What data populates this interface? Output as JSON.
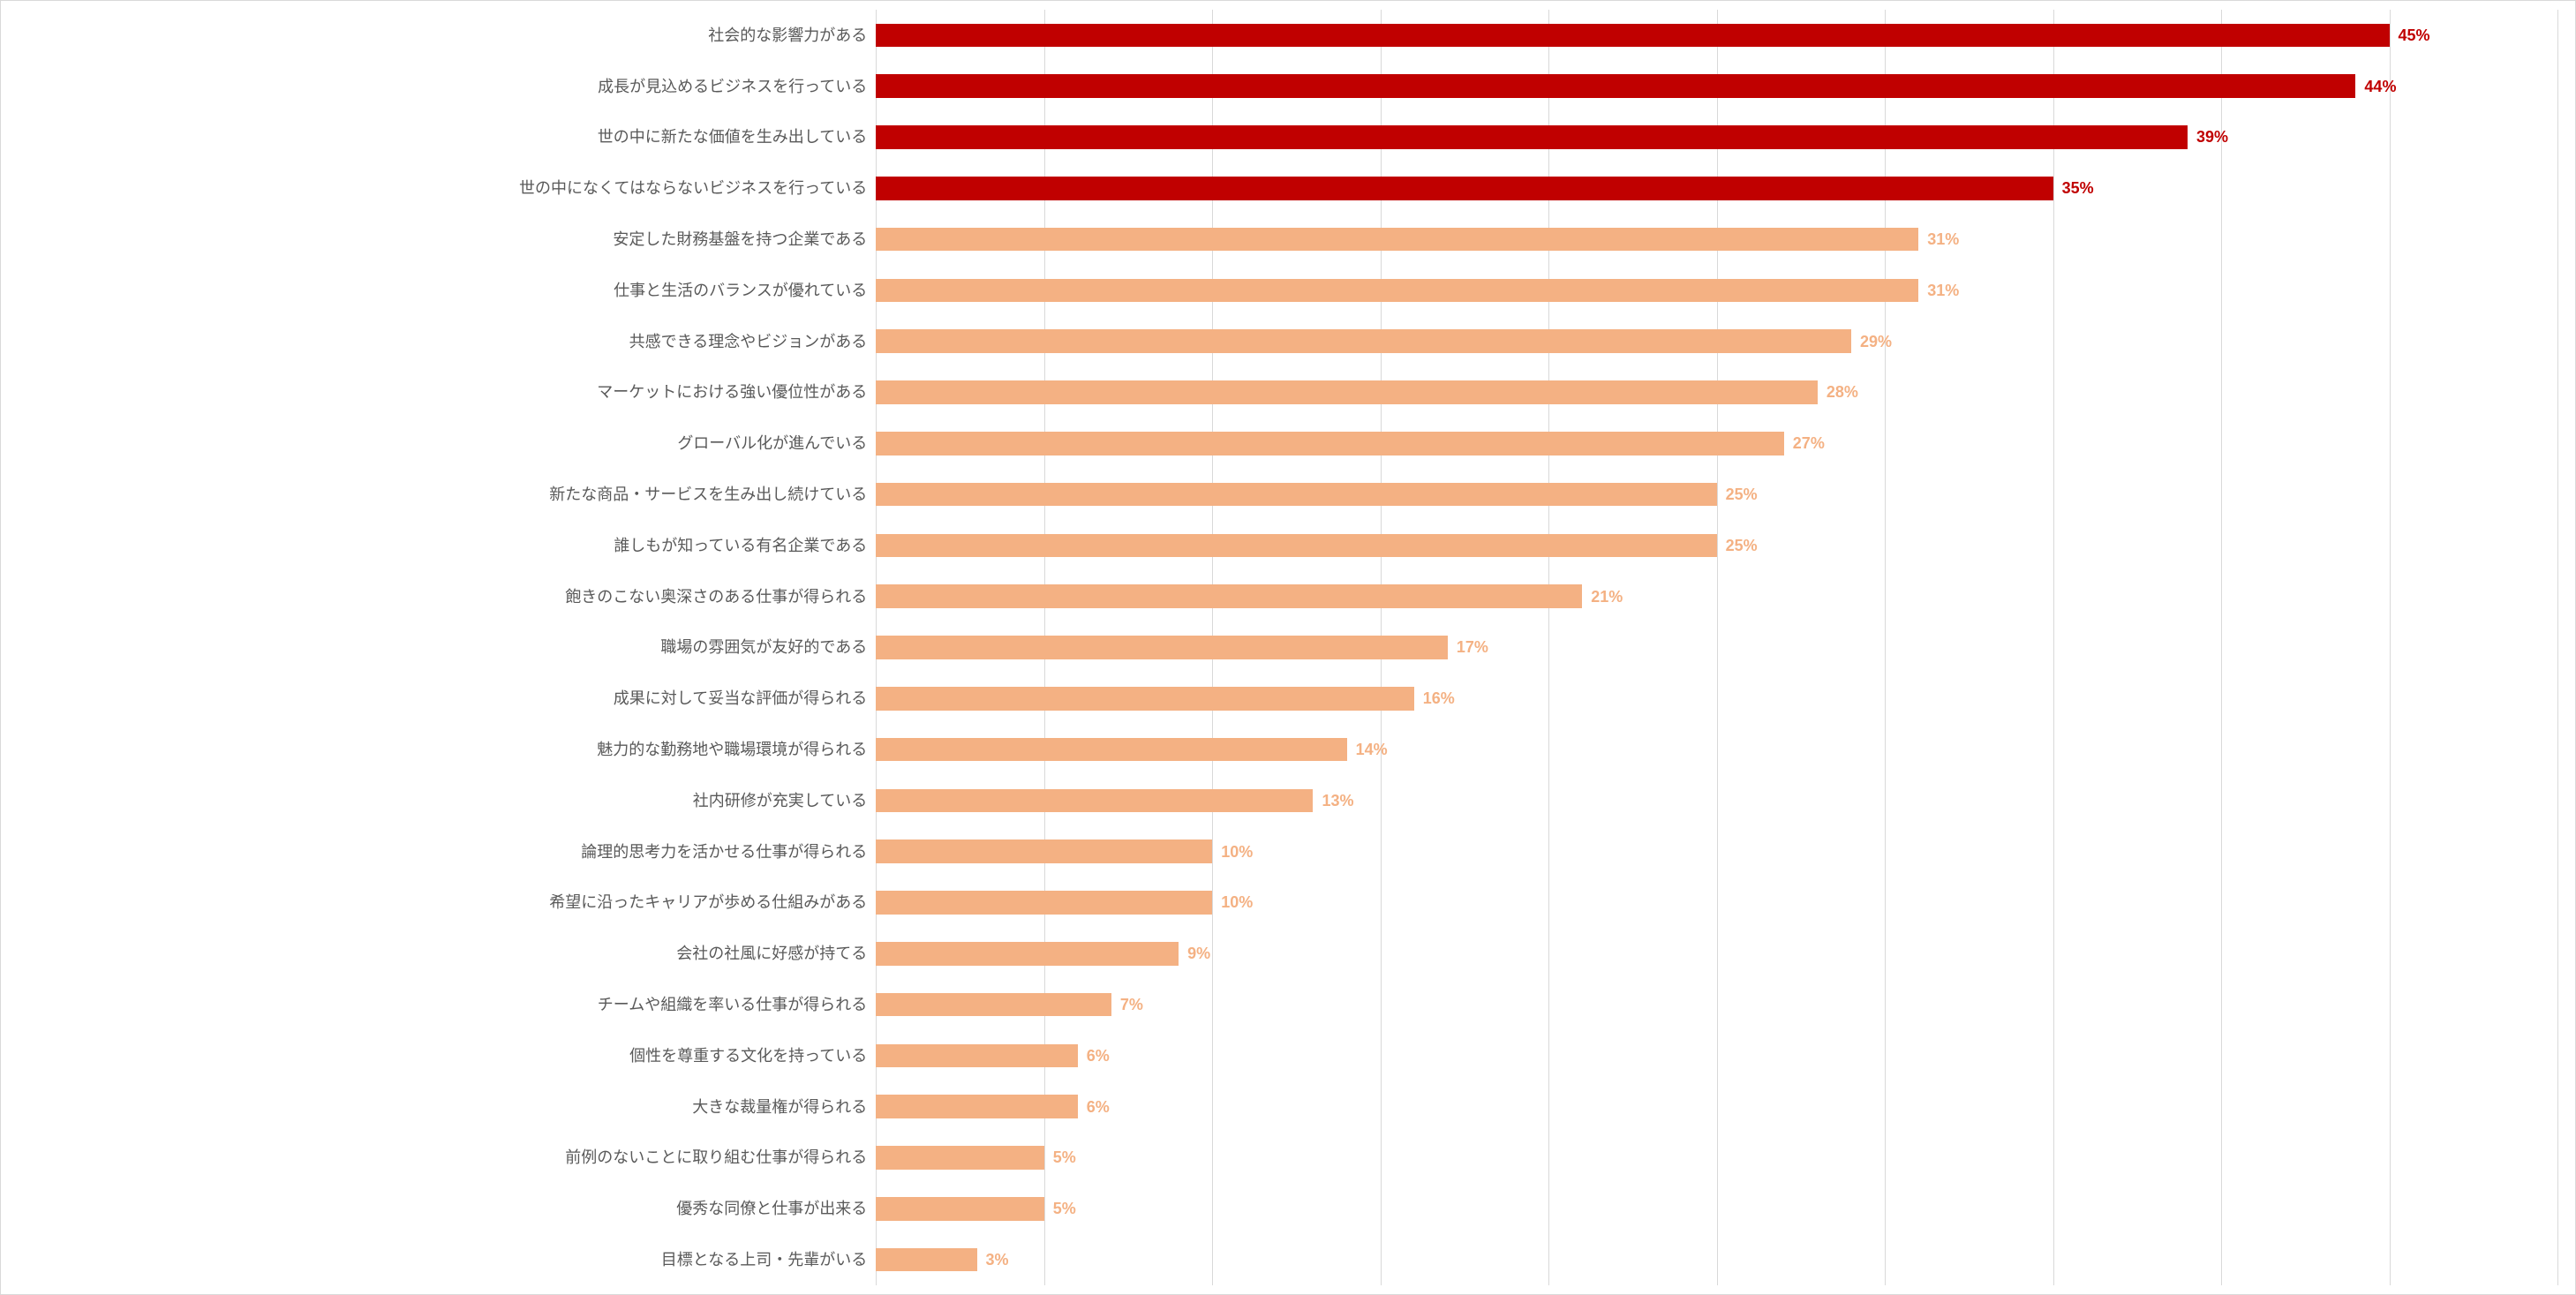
{
  "chart": {
    "type": "bar-horizontal",
    "x_max": 50,
    "xtick_step": 5,
    "background_color": "#ffffff",
    "border_color": "#d9d9d9",
    "grid_color": "#d9d9d9",
    "label_color": "#595959",
    "label_fontsize": 18,
    "value_fontsize": 18,
    "value_fontweight": 700,
    "bar_width_ratio": 0.46,
    "colors": {
      "highlight_bar": "#c00000",
      "highlight_text": "#c00000",
      "normal_bar": "#f4b183",
      "normal_text": "#f4b183"
    },
    "items": [
      {
        "label": "社会的な影響力がある",
        "value": 45,
        "display": "45%",
        "highlight": true
      },
      {
        "label": "成長が見込めるビジネスを行っている",
        "value": 44,
        "display": "44%",
        "highlight": true
      },
      {
        "label": "世の中に新たな価値を生み出している",
        "value": 39,
        "display": "39%",
        "highlight": true
      },
      {
        "label": "世の中になくてはならないビジネスを行っている",
        "value": 35,
        "display": "35%",
        "highlight": true
      },
      {
        "label": "安定した財務基盤を持つ企業である",
        "value": 31,
        "display": "31%",
        "highlight": false
      },
      {
        "label": "仕事と生活のバランスが優れている",
        "value": 31,
        "display": "31%",
        "highlight": false
      },
      {
        "label": "共感できる理念やビジョンがある",
        "value": 29,
        "display": "29%",
        "highlight": false
      },
      {
        "label": "マーケットにおける強い優位性がある",
        "value": 28,
        "display": "28%",
        "highlight": false
      },
      {
        "label": "グローバル化が進んでいる",
        "value": 27,
        "display": "27%",
        "highlight": false
      },
      {
        "label": "新たな商品・サービスを生み出し続けている",
        "value": 25,
        "display": "25%",
        "highlight": false
      },
      {
        "label": "誰しもが知っている有名企業である",
        "value": 25,
        "display": "25%",
        "highlight": false
      },
      {
        "label": "飽きのこない奥深さのある仕事が得られる",
        "value": 21,
        "display": "21%",
        "highlight": false
      },
      {
        "label": "職場の雰囲気が友好的である",
        "value": 17,
        "display": "17%",
        "highlight": false
      },
      {
        "label": "成果に対して妥当な評価が得られる",
        "value": 16,
        "display": "16%",
        "highlight": false
      },
      {
        "label": "魅力的な勤務地や職場環境が得られる",
        "value": 14,
        "display": "14%",
        "highlight": false
      },
      {
        "label": "社内研修が充実している",
        "value": 13,
        "display": "13%",
        "highlight": false
      },
      {
        "label": "論理的思考力を活かせる仕事が得られる",
        "value": 10,
        "display": "10%",
        "highlight": false
      },
      {
        "label": "希望に沿ったキャリアが歩める仕組みがある",
        "value": 10,
        "display": "10%",
        "highlight": false
      },
      {
        "label": "会社の社風に好感が持てる",
        "value": 9,
        "display": "9%",
        "highlight": false
      },
      {
        "label": "チームや組織を率いる仕事が得られる",
        "value": 7,
        "display": "7%",
        "highlight": false
      },
      {
        "label": "個性を尊重する文化を持っている",
        "value": 6,
        "display": "6%",
        "highlight": false
      },
      {
        "label": "大きな裁量権が得られる",
        "value": 6,
        "display": "6%",
        "highlight": false
      },
      {
        "label": "前例のないことに取り組む仕事が得られる",
        "value": 5,
        "display": "5%",
        "highlight": false
      },
      {
        "label": "優秀な同僚と仕事が出来る",
        "value": 5,
        "display": "5%",
        "highlight": false
      },
      {
        "label": "目標となる上司・先輩がいる",
        "value": 3,
        "display": "3%",
        "highlight": false
      }
    ]
  }
}
